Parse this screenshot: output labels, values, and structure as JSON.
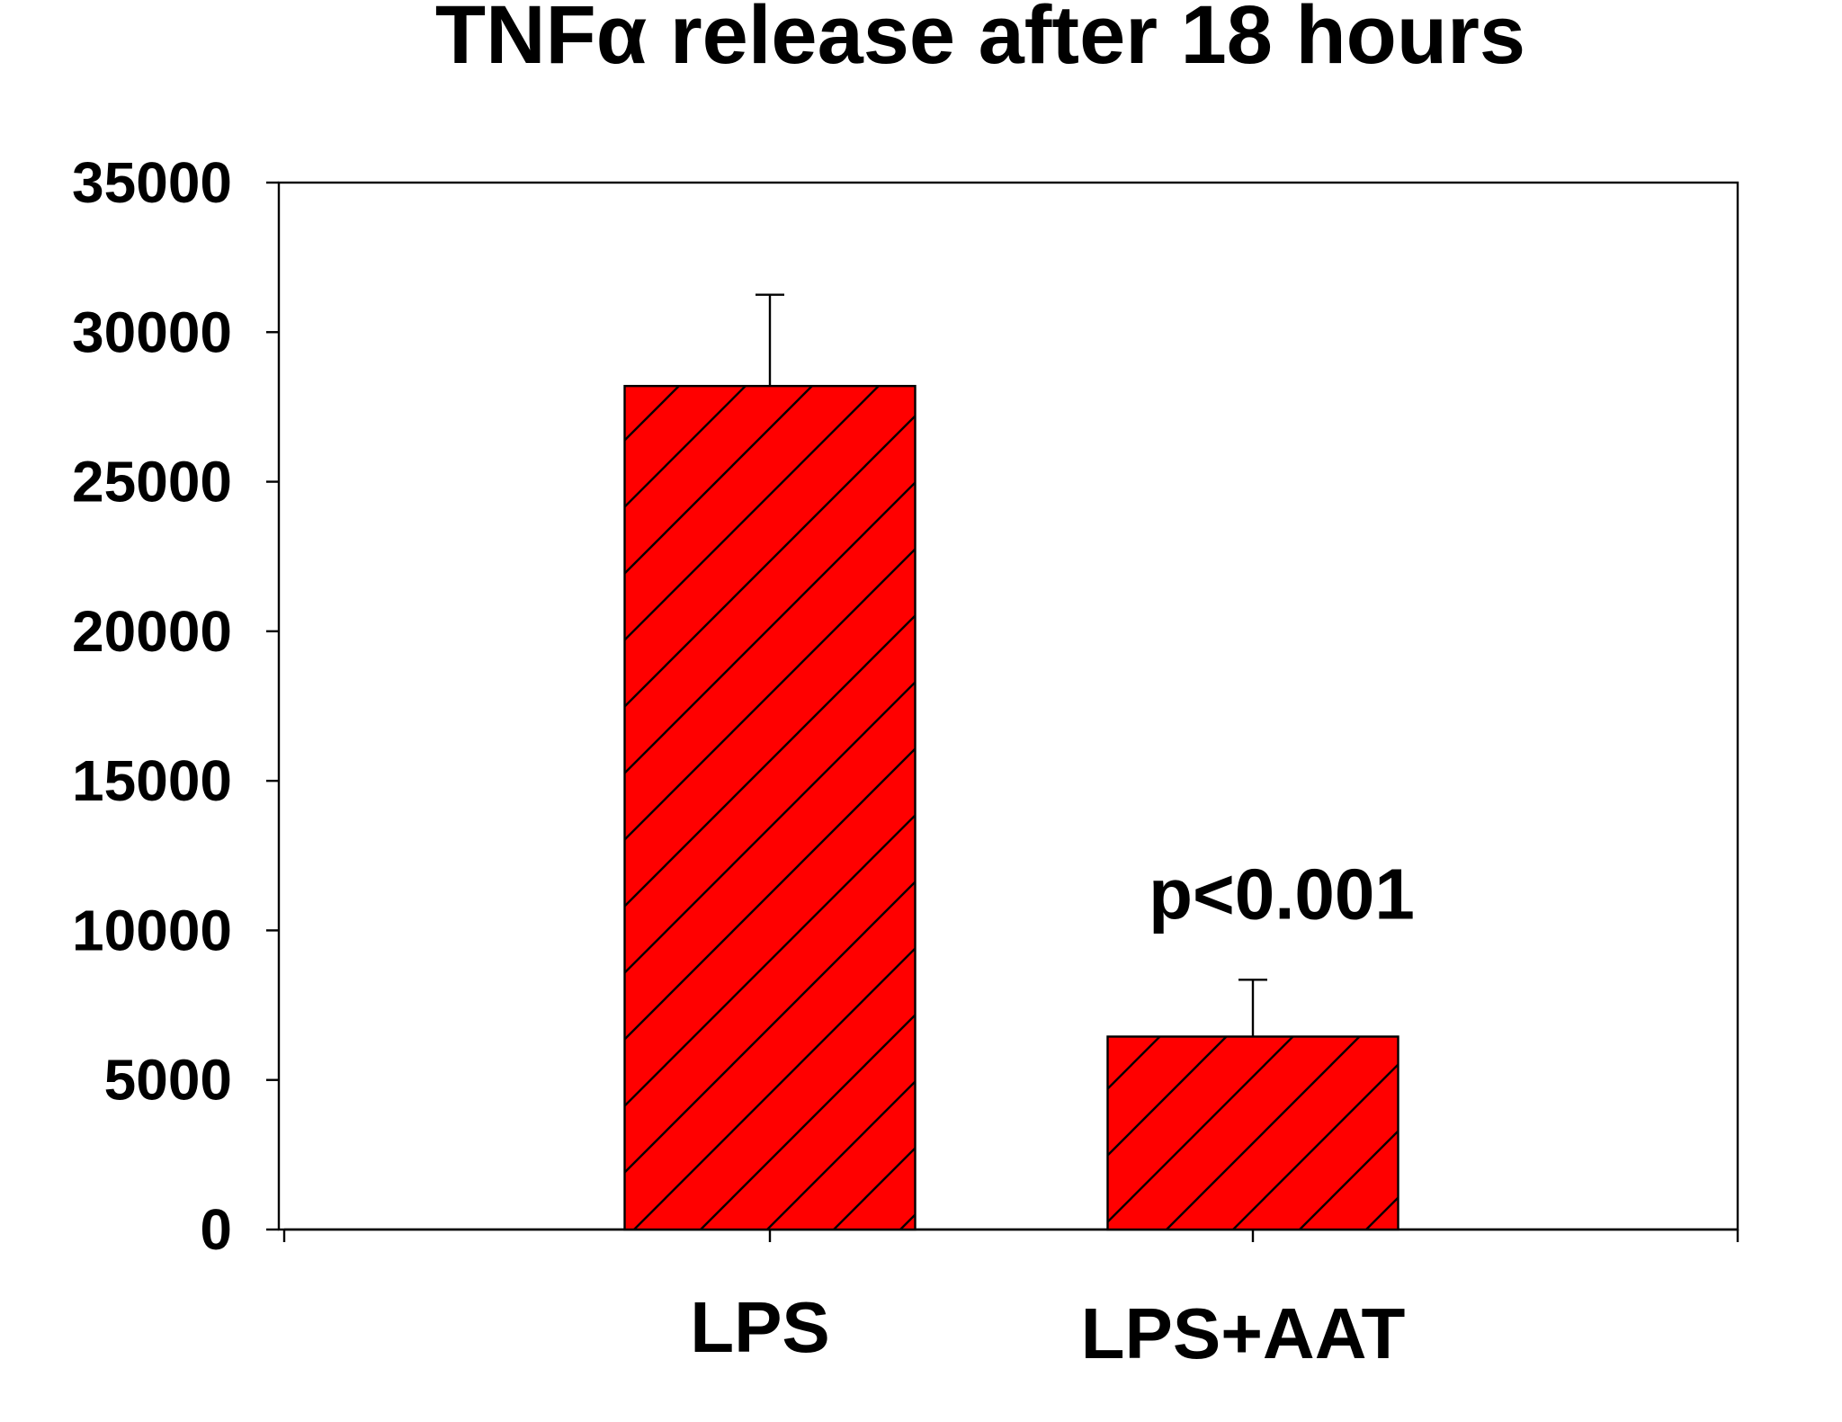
{
  "chart_data": {
    "type": "bar",
    "title": "TNFα release after 18 hours",
    "xlabel": "",
    "ylabel": "",
    "categories": [
      "LPS",
      "LPS+AAT"
    ],
    "values": [
      28200,
      6450
    ],
    "error_upper": [
      31250,
      8350
    ],
    "ylim": [
      0,
      35000
    ],
    "yticks": [
      "0",
      "5000",
      "10000",
      "15000",
      "20000",
      "25000",
      "30000",
      "35000"
    ],
    "annotation": "p<0.001",
    "bar_color": "#ff0000",
    "hatch": "diagonal",
    "grid": false,
    "legend": "none"
  }
}
